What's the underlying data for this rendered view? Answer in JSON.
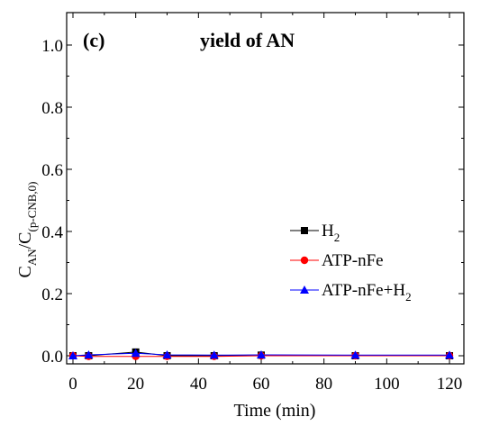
{
  "chart_data": {
    "type": "line",
    "panel_label": "(c)",
    "title": "yield of AN",
    "xlabel": "Time (min)",
    "ylabel": {
      "main": "C",
      "sub1": "AN",
      "slash": "/C",
      "sub2": "(p-CNB,0)"
    },
    "xlim": [
      0,
      120
    ],
    "ylim": [
      0.0,
      1.0
    ],
    "xticks": [
      0,
      20,
      40,
      60,
      80,
      100,
      120
    ],
    "yticks": [
      0.0,
      0.2,
      0.4,
      0.6,
      0.8,
      1.0
    ],
    "xtick_labels": [
      "0",
      "20",
      "40",
      "60",
      "80",
      "100",
      "120"
    ],
    "ytick_labels": [
      "0.0",
      "0.2",
      "0.4",
      "0.6",
      "0.8",
      "1.0"
    ],
    "x": [
      0,
      5,
      20,
      30,
      45,
      60,
      90,
      120
    ],
    "series": [
      {
        "name": "H",
        "name_sub": "2",
        "color": "#000000",
        "marker": "square",
        "values": [
          0.0,
          0.0,
          0.012,
          0.0,
          0.0,
          0.002,
          0.0,
          0.0
        ]
      },
      {
        "name": "ATP-nFe",
        "name_sub": "",
        "color": "#ff0000",
        "marker": "circle",
        "values": [
          0.0,
          -0.002,
          -0.002,
          -0.002,
          -0.002,
          0.0,
          0.0,
          0.0
        ]
      },
      {
        "name": "ATP-nFe+H",
        "name_sub": "2",
        "color": "#0000ff",
        "marker": "triangle",
        "values": [
          0.0,
          0.003,
          0.008,
          0.003,
          0.002,
          0.003,
          0.002,
          0.002
        ]
      }
    ],
    "grid": false,
    "legend_position": "center-right"
  }
}
